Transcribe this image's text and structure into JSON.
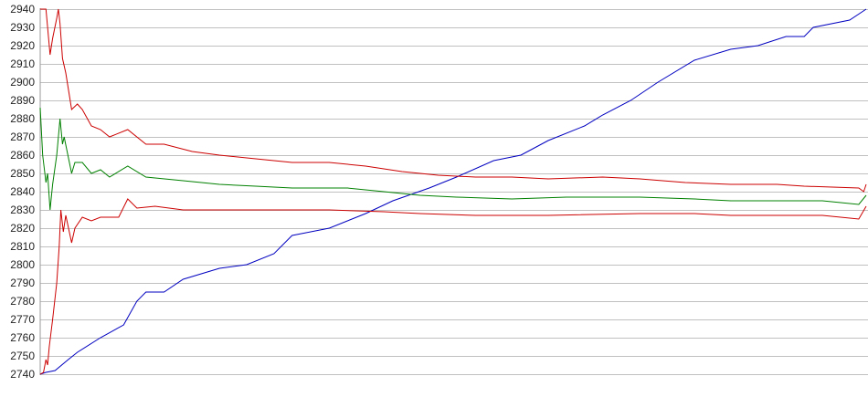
{
  "chart_data": {
    "type": "line",
    "title": "",
    "xlabel": "",
    "ylabel": "",
    "xlim": [
      0,
      100
    ],
    "ylim": [
      2740,
      2940
    ],
    "yticks": [
      2740,
      2750,
      2760,
      2770,
      2780,
      2790,
      2800,
      2810,
      2820,
      2830,
      2840,
      2850,
      2860,
      2870,
      2880,
      2890,
      2900,
      2910,
      2920,
      2930,
      2940
    ],
    "grid": "horizontal",
    "legend": "none",
    "series": [
      {
        "color": "#0000c0",
        "points": [
          [
            0,
            2740
          ],
          [
            0.7,
            2741
          ],
          [
            1.8,
            2742
          ],
          [
            3.4,
            2748
          ],
          [
            4.5,
            2752
          ],
          [
            7.3,
            2760
          ],
          [
            10.1,
            2767
          ],
          [
            11.7,
            2780
          ],
          [
            12.8,
            2785
          ],
          [
            15.0,
            2785
          ],
          [
            17.3,
            2792
          ],
          [
            21.7,
            2798
          ],
          [
            25.0,
            2800
          ],
          [
            28.3,
            2806
          ],
          [
            30.5,
            2816
          ],
          [
            35.0,
            2820
          ],
          [
            39.4,
            2828
          ],
          [
            42.7,
            2835
          ],
          [
            47.1,
            2842
          ],
          [
            50.4,
            2848
          ],
          [
            54.9,
            2857
          ],
          [
            58.2,
            2860
          ],
          [
            61.5,
            2868
          ],
          [
            65.9,
            2876
          ],
          [
            68.1,
            2882
          ],
          [
            71.5,
            2890
          ],
          [
            74.8,
            2900
          ],
          [
            79.2,
            2912
          ],
          [
            83.6,
            2918
          ],
          [
            86.9,
            2920
          ],
          [
            90.3,
            2925
          ],
          [
            92.5,
            2925
          ],
          [
            93.6,
            2930
          ],
          [
            98.0,
            2934
          ],
          [
            100,
            2940
          ]
        ]
      },
      {
        "color": "#cc0000",
        "points": [
          [
            0,
            2940
          ],
          [
            0.7,
            2940
          ],
          [
            1.2,
            2915
          ],
          [
            1.5,
            2924
          ],
          [
            2.0,
            2935
          ],
          [
            2.2,
            2940
          ],
          [
            2.4,
            2932
          ],
          [
            2.7,
            2913
          ],
          [
            3.1,
            2905
          ],
          [
            3.8,
            2885
          ],
          [
            4.5,
            2888
          ],
          [
            5.1,
            2885
          ],
          [
            6.2,
            2876
          ],
          [
            7.3,
            2874
          ],
          [
            8.4,
            2870
          ],
          [
            10.6,
            2874
          ],
          [
            12.8,
            2866
          ],
          [
            15.0,
            2866
          ],
          [
            18.4,
            2862
          ],
          [
            21.7,
            2860
          ],
          [
            26.1,
            2858
          ],
          [
            30.5,
            2856
          ],
          [
            35.0,
            2856
          ],
          [
            39.4,
            2854
          ],
          [
            43.8,
            2851
          ],
          [
            48.2,
            2849
          ],
          [
            52.7,
            2848
          ],
          [
            57.1,
            2848
          ],
          [
            61.5,
            2847
          ],
          [
            68.1,
            2848
          ],
          [
            72.6,
            2847
          ],
          [
            78.1,
            2845
          ],
          [
            83.6,
            2844
          ],
          [
            89.2,
            2844
          ],
          [
            92.5,
            2843
          ],
          [
            99.1,
            2842
          ],
          [
            99.7,
            2840
          ],
          [
            100,
            2844
          ]
        ]
      },
      {
        "color": "#008000",
        "points": [
          [
            0,
            2886
          ],
          [
            0.3,
            2860
          ],
          [
            0.7,
            2845
          ],
          [
            0.9,
            2850
          ],
          [
            1.2,
            2830
          ],
          [
            1.5,
            2844
          ],
          [
            2.0,
            2860
          ],
          [
            2.4,
            2880
          ],
          [
            2.7,
            2866
          ],
          [
            2.9,
            2870
          ],
          [
            3.8,
            2850
          ],
          [
            4.2,
            2856
          ],
          [
            5.1,
            2856
          ],
          [
            6.2,
            2850
          ],
          [
            7.3,
            2852
          ],
          [
            8.4,
            2848
          ],
          [
            10.6,
            2854
          ],
          [
            12.8,
            2848
          ],
          [
            17.3,
            2846
          ],
          [
            21.7,
            2844
          ],
          [
            26.1,
            2843
          ],
          [
            30.5,
            2842
          ],
          [
            37.2,
            2842
          ],
          [
            41.6,
            2840
          ],
          [
            46.0,
            2838
          ],
          [
            50.4,
            2837
          ],
          [
            57.1,
            2836
          ],
          [
            63.7,
            2837
          ],
          [
            72.6,
            2837
          ],
          [
            79.2,
            2836
          ],
          [
            83.6,
            2835
          ],
          [
            90.3,
            2835
          ],
          [
            94.7,
            2835
          ],
          [
            99.1,
            2833
          ],
          [
            100,
            2838
          ]
        ]
      },
      {
        "color": "#cc0000",
        "points": [
          [
            0,
            2740
          ],
          [
            0.4,
            2741
          ],
          [
            0.7,
            2748
          ],
          [
            0.9,
            2745
          ],
          [
            1.1,
            2755
          ],
          [
            1.5,
            2770
          ],
          [
            2.0,
            2790
          ],
          [
            2.3,
            2810
          ],
          [
            2.5,
            2830
          ],
          [
            2.8,
            2818
          ],
          [
            3.1,
            2827
          ],
          [
            3.8,
            2812
          ],
          [
            4.2,
            2820
          ],
          [
            5.1,
            2826
          ],
          [
            6.2,
            2824
          ],
          [
            7.3,
            2826
          ],
          [
            9.5,
            2826
          ],
          [
            10.6,
            2836
          ],
          [
            11.7,
            2831
          ],
          [
            13.9,
            2832
          ],
          [
            17.3,
            2830
          ],
          [
            21.7,
            2830
          ],
          [
            28.3,
            2830
          ],
          [
            35.0,
            2830
          ],
          [
            41.6,
            2829
          ],
          [
            46.0,
            2828
          ],
          [
            52.7,
            2827
          ],
          [
            61.5,
            2827
          ],
          [
            72.6,
            2828
          ],
          [
            79.2,
            2828
          ],
          [
            83.6,
            2827
          ],
          [
            90.3,
            2827
          ],
          [
            94.7,
            2827
          ],
          [
            99.1,
            2825
          ],
          [
            100,
            2832
          ]
        ]
      }
    ]
  }
}
